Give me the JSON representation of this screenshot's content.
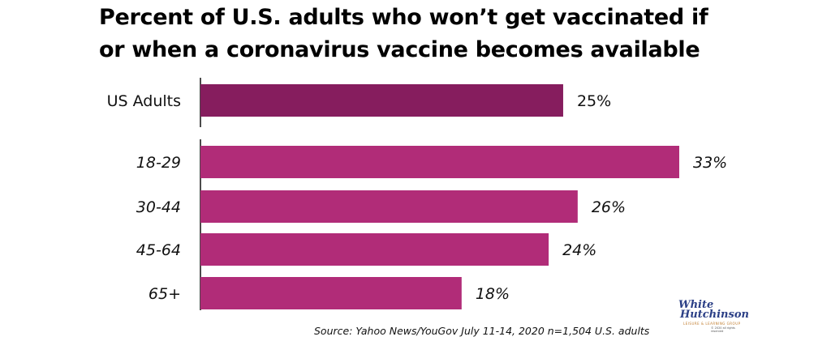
{
  "chart_data": {
    "type": "bar",
    "orientation": "horizontal",
    "title_lines": [
      "Percent of U.S. adults who won’t get vaccinated if",
      "or when a coronavirus vaccine becomes available"
    ],
    "categories": [
      "US Adults",
      "18-29",
      "30-44",
      "45-64",
      "65+"
    ],
    "values": [
      25,
      33,
      26,
      24,
      18
    ],
    "value_labels": [
      "25%",
      "33%",
      "26%",
      "24%",
      "18%"
    ],
    "category_styles": [
      "normal",
      "italic",
      "italic",
      "italic",
      "italic"
    ],
    "colors": [
      "#861d5e",
      "#b12c78",
      "#b12c78",
      "#b12c78",
      "#b12c78"
    ],
    "xlim": [
      0,
      33
    ],
    "grid": false,
    "legend": "none"
  },
  "source": "Source: Yahoo News/YouGov July 11-14, 2020 n=1,504 U.S. adults",
  "logo": {
    "line1": "White",
    "line2": "Hutchinson",
    "line3": "LEISURE & LEARNING GROUP",
    "line4": "© 2020 all rights reserved"
  }
}
